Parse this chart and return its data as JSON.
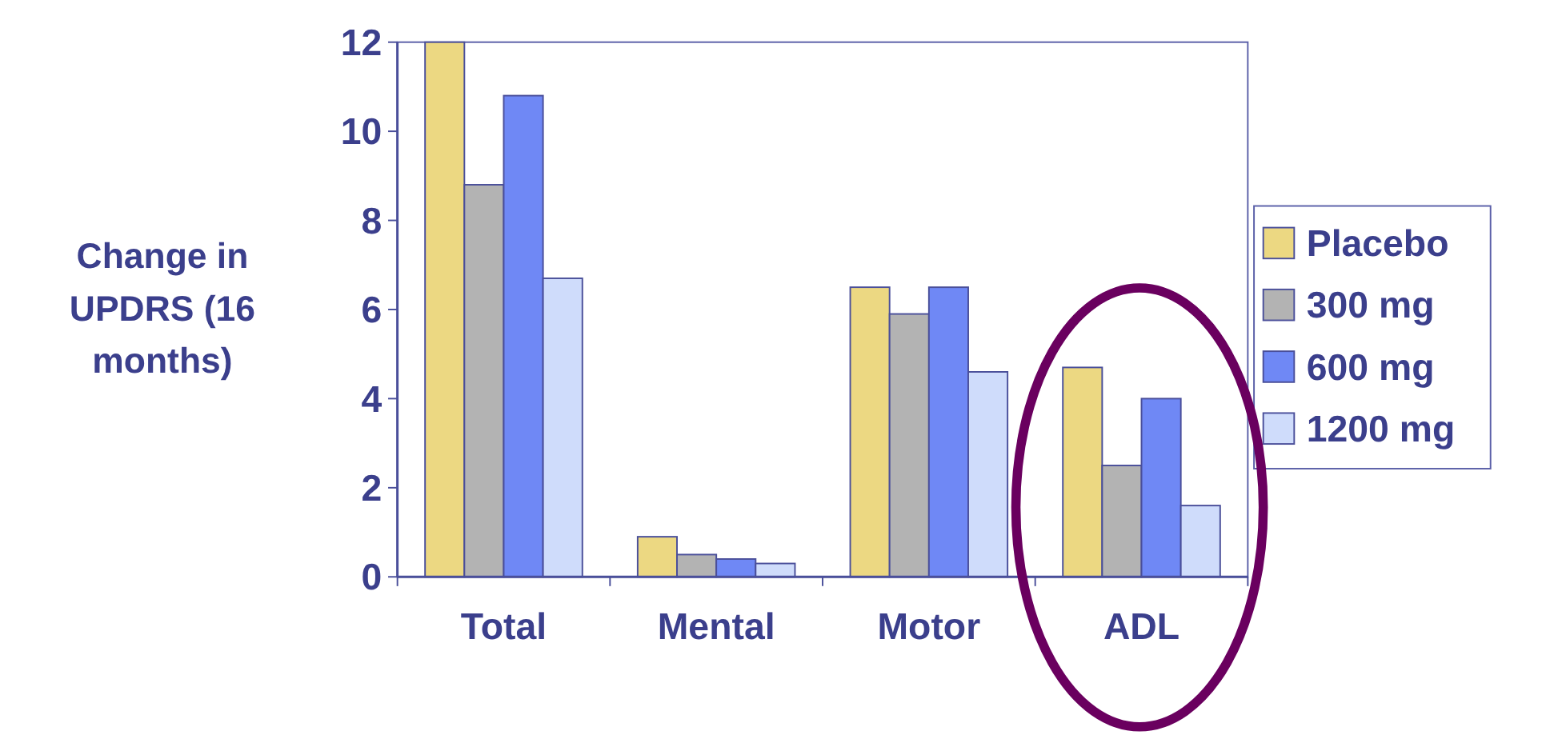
{
  "chart_data": {
    "type": "bar",
    "ylabel": "Change in UPDRS (16 months)",
    "categories": [
      "Total",
      "Mental",
      "Motor",
      "ADL"
    ],
    "series": [
      {
        "name": "Placebo",
        "color": "#ecd882",
        "values": [
          12.0,
          0.9,
          6.5,
          4.7
        ]
      },
      {
        "name": "300 mg",
        "color": "#b3b3b3",
        "values": [
          8.8,
          0.5,
          5.9,
          2.5
        ]
      },
      {
        "name": "600 mg",
        "color": "#6f88f5",
        "values": [
          10.8,
          0.4,
          6.5,
          4.0
        ]
      },
      {
        "name": "1200 mg",
        "color": "#cfdcfb",
        "values": [
          6.7,
          0.3,
          4.6,
          1.6
        ]
      }
    ],
    "ylim": [
      0,
      12
    ],
    "yticks": [
      0,
      2,
      4,
      6,
      8,
      10,
      12
    ],
    "grid": false,
    "legend": "right"
  }
}
